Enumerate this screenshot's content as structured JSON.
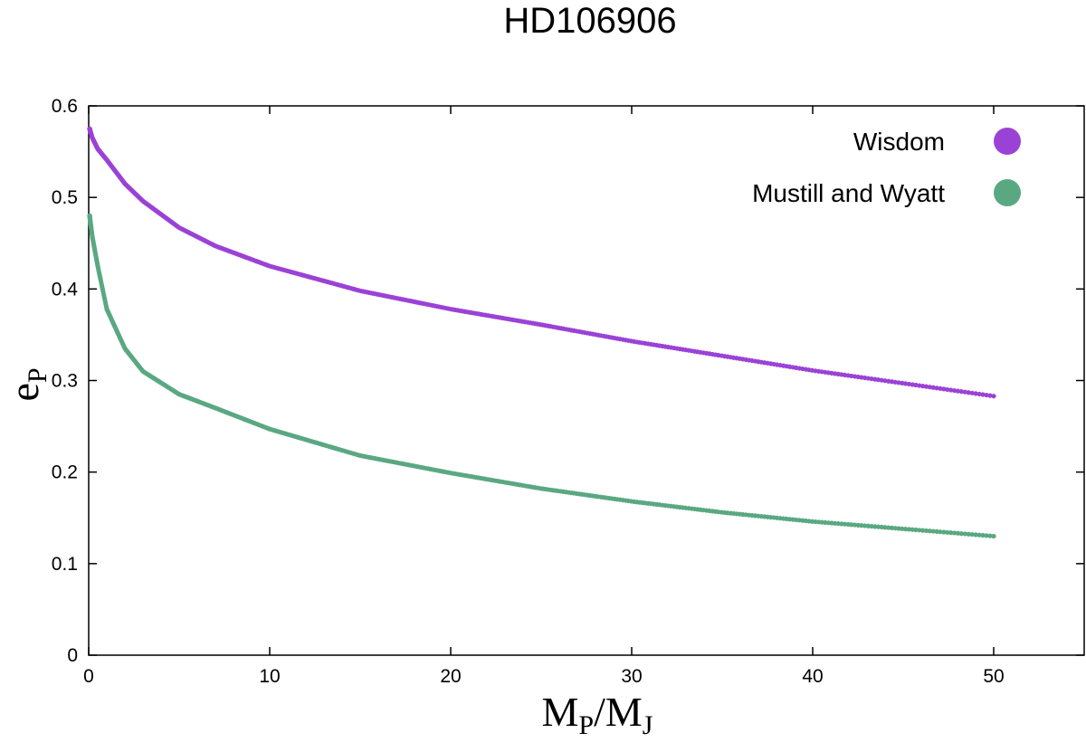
{
  "chart_data": {
    "type": "scatter",
    "title": "HD106906",
    "xlabel": {
      "main": "M",
      "sub1": "P",
      "slash": "/M",
      "sub2": "J"
    },
    "ylabel": {
      "main": "e",
      "sub": "P"
    },
    "xlim": [
      0,
      55
    ],
    "ylim": [
      0,
      0.6
    ],
    "xticks": [
      0,
      10,
      20,
      30,
      40,
      50
    ],
    "yticks": [
      0,
      0.1,
      0.2,
      0.3,
      0.4,
      0.5,
      0.6
    ],
    "xtick_labels": [
      "0",
      "10",
      "20",
      "30",
      "40",
      "50"
    ],
    "ytick_labels": [
      "0",
      "0.1",
      "0.2",
      "0.3",
      "0.4",
      "0.5",
      "0.6"
    ],
    "grid": false,
    "legend_position": "top-right",
    "series": [
      {
        "name": "Wisdom",
        "color": "#9b42d6",
        "x": [
          0.05,
          0.2,
          0.5,
          1,
          2,
          3,
          5,
          7,
          10,
          15,
          20,
          25,
          30,
          35,
          40,
          45,
          50
        ],
        "y": [
          0.575,
          0.565,
          0.553,
          0.541,
          0.515,
          0.496,
          0.467,
          0.447,
          0.425,
          0.398,
          0.378,
          0.361,
          0.343,
          0.327,
          0.311,
          0.297,
          0.283
        ]
      },
      {
        "name": "Mustill and Wyatt",
        "color": "#5aa882",
        "x": [
          0.05,
          0.2,
          0.5,
          1,
          2,
          3,
          5,
          7,
          10,
          15,
          20,
          25,
          30,
          35,
          40,
          45,
          50
        ],
        "y": [
          0.48,
          0.457,
          0.425,
          0.378,
          0.335,
          0.31,
          0.285,
          0.27,
          0.247,
          0.218,
          0.199,
          0.182,
          0.168,
          0.156,
          0.146,
          0.138,
          0.13
        ]
      }
    ]
  }
}
